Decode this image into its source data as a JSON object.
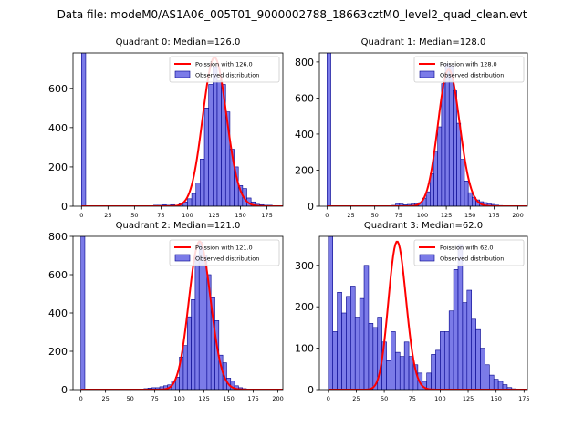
{
  "suptitle": "Data file: modeM0/AS1A06_005T01_9000002788_18663cztM0_level2_quad_clean.evt",
  "colors": {
    "bar_fill": "#7b7be8",
    "bar_edge": "#00008b",
    "curve": "#ff0000",
    "axis": "#000000"
  },
  "chart_data": [
    {
      "type": "bar",
      "title": "Quadrant 0: Median=126.0",
      "xlim": [
        -8,
        190
      ],
      "ylim": [
        0,
        780
      ],
      "xticks": [
        0,
        25,
        50,
        75,
        100,
        125,
        150,
        175
      ],
      "yticks": [
        0,
        200,
        400,
        600
      ],
      "bin_width": 4,
      "bins": [
        [
          0,
          780
        ],
        [
          68,
          5
        ],
        [
          72,
          5
        ],
        [
          76,
          8
        ],
        [
          80,
          5
        ],
        [
          84,
          8
        ],
        [
          88,
          5
        ],
        [
          92,
          12
        ],
        [
          96,
          22
        ],
        [
          100,
          38
        ],
        [
          104,
          65
        ],
        [
          108,
          118
        ],
        [
          112,
          240
        ],
        [
          116,
          500
        ],
        [
          120,
          620
        ],
        [
          124,
          710
        ],
        [
          128,
          640
        ],
        [
          132,
          620
        ],
        [
          136,
          480
        ],
        [
          140,
          290
        ],
        [
          144,
          200
        ],
        [
          148,
          105
        ],
        [
          152,
          90
        ],
        [
          156,
          42
        ],
        [
          160,
          22
        ],
        [
          164,
          10
        ],
        [
          168,
          8
        ],
        [
          172,
          5
        ],
        [
          176,
          5
        ],
        [
          180,
          2
        ]
      ],
      "poisson_mean": 126,
      "poisson_peak": 756,
      "legend": {
        "line": "Poission with 126.0",
        "bars": "Observed distribution"
      }
    },
    {
      "type": "bar",
      "title": "Quadrant 1: Median=128.0",
      "xlim": [
        -8,
        210
      ],
      "ylim": [
        0,
        850
      ],
      "xticks": [
        0,
        25,
        50,
        75,
        100,
        125,
        150,
        175,
        200
      ],
      "yticks": [
        0,
        200,
        400,
        600,
        800
      ],
      "bin_width": 4,
      "bins": [
        [
          0,
          850
        ],
        [
          68,
          5
        ],
        [
          72,
          15
        ],
        [
          76,
          12
        ],
        [
          80,
          8
        ],
        [
          84,
          10
        ],
        [
          88,
          12
        ],
        [
          92,
          15
        ],
        [
          96,
          20
        ],
        [
          100,
          45
        ],
        [
          104,
          80
        ],
        [
          108,
          180
        ],
        [
          112,
          300
        ],
        [
          116,
          440
        ],
        [
          120,
          680
        ],
        [
          124,
          790
        ],
        [
          128,
          780
        ],
        [
          132,
          640
        ],
        [
          136,
          460
        ],
        [
          140,
          260
        ],
        [
          144,
          140
        ],
        [
          148,
          75
        ],
        [
          152,
          50
        ],
        [
          156,
          35
        ],
        [
          160,
          25
        ],
        [
          164,
          20
        ],
        [
          168,
          15
        ],
        [
          172,
          10
        ],
        [
          176,
          6
        ],
        [
          180,
          4
        ]
      ],
      "poisson_mean": 128,
      "poisson_peak": 757,
      "legend": {
        "line": "Poission with 128.0",
        "bars": "Observed distribution"
      }
    },
    {
      "type": "bar",
      "title": "Quadrant 2: Median=121.0",
      "xlim": [
        -8,
        205
      ],
      "ylim": [
        0,
        800
      ],
      "xticks": [
        0,
        25,
        50,
        75,
        100,
        125,
        150,
        175,
        200
      ],
      "yticks": [
        0,
        200,
        400,
        600,
        800
      ],
      "bin_width": 4,
      "bins": [
        [
          0,
          800
        ],
        [
          64,
          5
        ],
        [
          68,
          8
        ],
        [
          72,
          10
        ],
        [
          76,
          10
        ],
        [
          80,
          15
        ],
        [
          84,
          20
        ],
        [
          88,
          25
        ],
        [
          92,
          45
        ],
        [
          96,
          65
        ],
        [
          100,
          170
        ],
        [
          104,
          230
        ],
        [
          108,
          380
        ],
        [
          112,
          470
        ],
        [
          116,
          700
        ],
        [
          120,
          770
        ],
        [
          124,
          700
        ],
        [
          128,
          600
        ],
        [
          132,
          480
        ],
        [
          136,
          360
        ],
        [
          140,
          180
        ],
        [
          144,
          140
        ],
        [
          148,
          60
        ],
        [
          152,
          45
        ],
        [
          156,
          20
        ],
        [
          160,
          10
        ],
        [
          164,
          5
        ]
      ],
      "poisson_mean": 121,
      "poisson_peak": 773,
      "legend": {
        "line": "Poission with 121.0",
        "bars": "Observed distribution"
      }
    },
    {
      "type": "bar",
      "title": "Quadrant 3: Median=62.0",
      "xlim": [
        -8,
        178
      ],
      "ylim": [
        0,
        370
      ],
      "xticks": [
        0,
        25,
        50,
        75,
        100,
        125,
        150,
        175
      ],
      "yticks": [
        0,
        100,
        200,
        300
      ],
      "bin_width": 4,
      "bins": [
        [
          0,
          370
        ],
        [
          4,
          140
        ],
        [
          8,
          235
        ],
        [
          12,
          185
        ],
        [
          16,
          225
        ],
        [
          20,
          250
        ],
        [
          24,
          175
        ],
        [
          28,
          220
        ],
        [
          32,
          300
        ],
        [
          36,
          160
        ],
        [
          40,
          150
        ],
        [
          44,
          175
        ],
        [
          48,
          115
        ],
        [
          52,
          70
        ],
        [
          56,
          140
        ],
        [
          60,
          90
        ],
        [
          64,
          80
        ],
        [
          68,
          115
        ],
        [
          72,
          80
        ],
        [
          76,
          60
        ],
        [
          80,
          40
        ],
        [
          84,
          20
        ],
        [
          88,
          40
        ],
        [
          92,
          85
        ],
        [
          96,
          95
        ],
        [
          100,
          140
        ],
        [
          104,
          140
        ],
        [
          108,
          190
        ],
        [
          112,
          290
        ],
        [
          116,
          350
        ],
        [
          120,
          210
        ],
        [
          124,
          240
        ],
        [
          128,
          170
        ],
        [
          132,
          145
        ],
        [
          136,
          100
        ],
        [
          140,
          60
        ],
        [
          144,
          35
        ],
        [
          148,
          25
        ],
        [
          152,
          20
        ],
        [
          156,
          12
        ],
        [
          160,
          5
        ],
        [
          164,
          2
        ]
      ],
      "poisson_mean": 62,
      "poisson_peak": 357,
      "legend": {
        "line": "Poission with 62.0",
        "bars": "Observed distribution"
      }
    }
  ]
}
